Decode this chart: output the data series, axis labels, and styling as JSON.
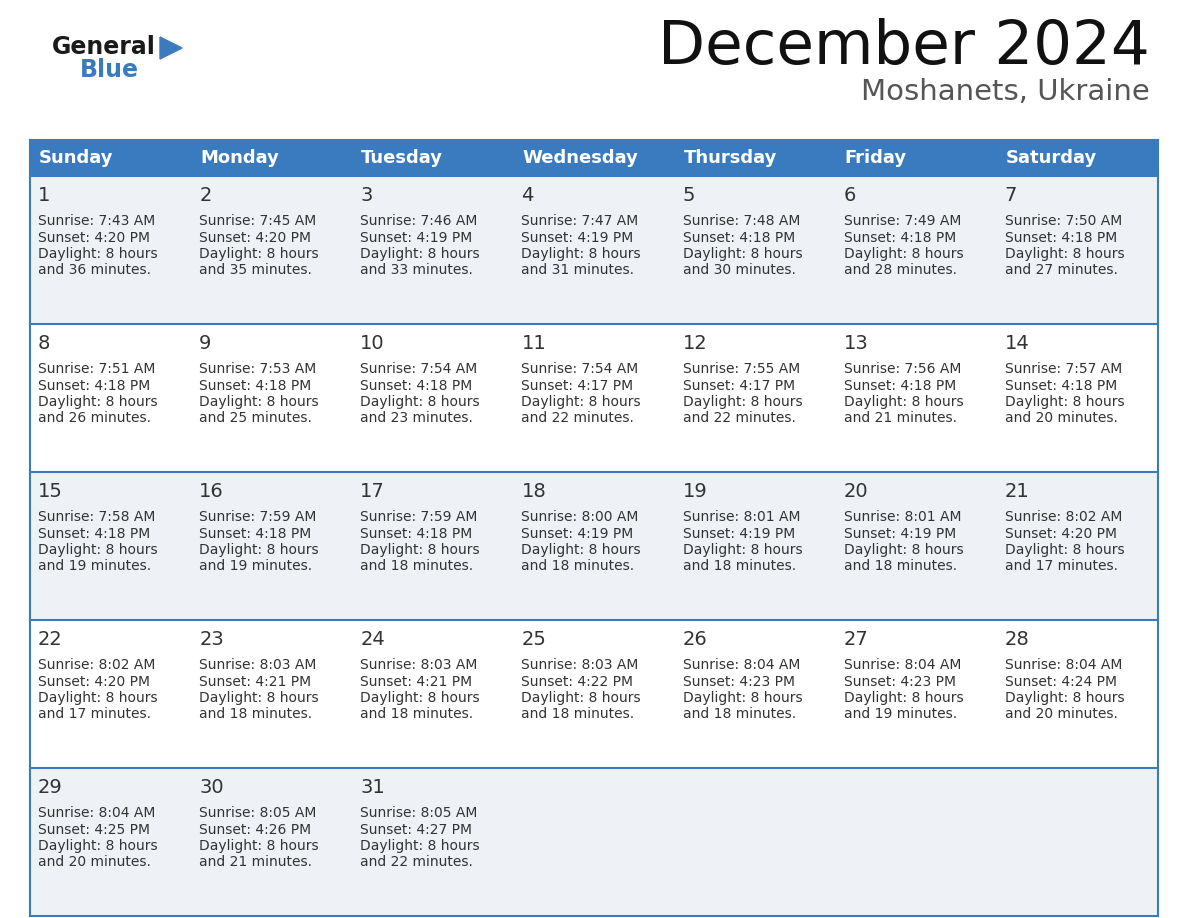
{
  "title": "December 2024",
  "subtitle": "Moshanets, Ukraine",
  "header_bg": "#3a7bbf",
  "header_text": "#ffffff",
  "day_names": [
    "Sunday",
    "Monday",
    "Tuesday",
    "Wednesday",
    "Thursday",
    "Friday",
    "Saturday"
  ],
  "row_bg_odd": "#eef2f7",
  "row_bg_even": "#ffffff",
  "border_color": "#3a7bbf",
  "day_num_color": "#333333",
  "info_color": "#333333",
  "calendar": [
    [
      {
        "day": 1,
        "sunrise": "7:43 AM",
        "sunset": "4:20 PM",
        "daylight": "8 hours and 36 minutes."
      },
      {
        "day": 2,
        "sunrise": "7:45 AM",
        "sunset": "4:20 PM",
        "daylight": "8 hours and 35 minutes."
      },
      {
        "day": 3,
        "sunrise": "7:46 AM",
        "sunset": "4:19 PM",
        "daylight": "8 hours and 33 minutes."
      },
      {
        "day": 4,
        "sunrise": "7:47 AM",
        "sunset": "4:19 PM",
        "daylight": "8 hours and 31 minutes."
      },
      {
        "day": 5,
        "sunrise": "7:48 AM",
        "sunset": "4:18 PM",
        "daylight": "8 hours and 30 minutes."
      },
      {
        "day": 6,
        "sunrise": "7:49 AM",
        "sunset": "4:18 PM",
        "daylight": "8 hours and 28 minutes."
      },
      {
        "day": 7,
        "sunrise": "7:50 AM",
        "sunset": "4:18 PM",
        "daylight": "8 hours and 27 minutes."
      }
    ],
    [
      {
        "day": 8,
        "sunrise": "7:51 AM",
        "sunset": "4:18 PM",
        "daylight": "8 hours and 26 minutes."
      },
      {
        "day": 9,
        "sunrise": "7:53 AM",
        "sunset": "4:18 PM",
        "daylight": "8 hours and 25 minutes."
      },
      {
        "day": 10,
        "sunrise": "7:54 AM",
        "sunset": "4:18 PM",
        "daylight": "8 hours and 23 minutes."
      },
      {
        "day": 11,
        "sunrise": "7:54 AM",
        "sunset": "4:17 PM",
        "daylight": "8 hours and 22 minutes."
      },
      {
        "day": 12,
        "sunrise": "7:55 AM",
        "sunset": "4:17 PM",
        "daylight": "8 hours and 22 minutes."
      },
      {
        "day": 13,
        "sunrise": "7:56 AM",
        "sunset": "4:18 PM",
        "daylight": "8 hours and 21 minutes."
      },
      {
        "day": 14,
        "sunrise": "7:57 AM",
        "sunset": "4:18 PM",
        "daylight": "8 hours and 20 minutes."
      }
    ],
    [
      {
        "day": 15,
        "sunrise": "7:58 AM",
        "sunset": "4:18 PM",
        "daylight": "8 hours and 19 minutes."
      },
      {
        "day": 16,
        "sunrise": "7:59 AM",
        "sunset": "4:18 PM",
        "daylight": "8 hours and 19 minutes."
      },
      {
        "day": 17,
        "sunrise": "7:59 AM",
        "sunset": "4:18 PM",
        "daylight": "8 hours and 18 minutes."
      },
      {
        "day": 18,
        "sunrise": "8:00 AM",
        "sunset": "4:19 PM",
        "daylight": "8 hours and 18 minutes."
      },
      {
        "day": 19,
        "sunrise": "8:01 AM",
        "sunset": "4:19 PM",
        "daylight": "8 hours and 18 minutes."
      },
      {
        "day": 20,
        "sunrise": "8:01 AM",
        "sunset": "4:19 PM",
        "daylight": "8 hours and 18 minutes."
      },
      {
        "day": 21,
        "sunrise": "8:02 AM",
        "sunset": "4:20 PM",
        "daylight": "8 hours and 17 minutes."
      }
    ],
    [
      {
        "day": 22,
        "sunrise": "8:02 AM",
        "sunset": "4:20 PM",
        "daylight": "8 hours and 17 minutes."
      },
      {
        "day": 23,
        "sunrise": "8:03 AM",
        "sunset": "4:21 PM",
        "daylight": "8 hours and 18 minutes."
      },
      {
        "day": 24,
        "sunrise": "8:03 AM",
        "sunset": "4:21 PM",
        "daylight": "8 hours and 18 minutes."
      },
      {
        "day": 25,
        "sunrise": "8:03 AM",
        "sunset": "4:22 PM",
        "daylight": "8 hours and 18 minutes."
      },
      {
        "day": 26,
        "sunrise": "8:04 AM",
        "sunset": "4:23 PM",
        "daylight": "8 hours and 18 minutes."
      },
      {
        "day": 27,
        "sunrise": "8:04 AM",
        "sunset": "4:23 PM",
        "daylight": "8 hours and 19 minutes."
      },
      {
        "day": 28,
        "sunrise": "8:04 AM",
        "sunset": "4:24 PM",
        "daylight": "8 hours and 20 minutes."
      }
    ],
    [
      {
        "day": 29,
        "sunrise": "8:04 AM",
        "sunset": "4:25 PM",
        "daylight": "8 hours and 20 minutes."
      },
      {
        "day": 30,
        "sunrise": "8:05 AM",
        "sunset": "4:26 PM",
        "daylight": "8 hours and 21 minutes."
      },
      {
        "day": 31,
        "sunrise": "8:05 AM",
        "sunset": "4:27 PM",
        "daylight": "8 hours and 22 minutes."
      },
      null,
      null,
      null,
      null
    ]
  ],
  "logo_general_color": "#1a1a1a",
  "logo_blue_color": "#3a7bbf",
  "fig_width": 11.88,
  "fig_height": 9.18,
  "dpi": 100
}
